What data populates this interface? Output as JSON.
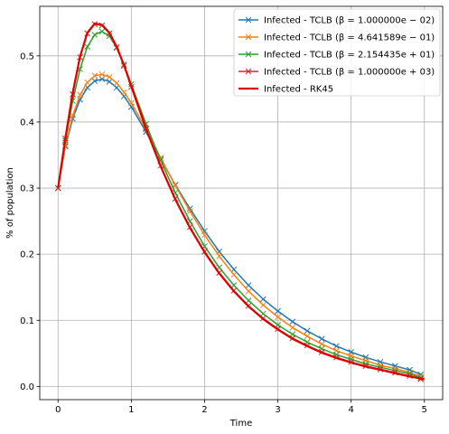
{
  "chart_data": {
    "type": "line",
    "xlabel": "Time",
    "ylabel": "% of population",
    "xlim": [
      -0.25,
      5.25
    ],
    "ylim": [
      -0.02,
      0.575
    ],
    "grid": true,
    "legend_position": "top-right",
    "x_ticks": [
      0,
      1,
      2,
      3,
      4,
      5
    ],
    "x_tick_labels": [
      "0",
      "1",
      "2",
      "3",
      "4",
      "5"
    ],
    "y_ticks": [
      0.0,
      0.1,
      0.2,
      0.3,
      0.4,
      0.5
    ],
    "y_tick_labels": [
      "0.0",
      "0.1",
      "0.2",
      "0.3",
      "0.4",
      "0.5"
    ],
    "series": [
      {
        "name": "Infected - TCLB  (β = 1.000000e − 02)",
        "color": "#1f77b4",
        "marker": "x",
        "x": [
          0.0,
          0.1,
          0.2,
          0.3,
          0.4,
          0.5,
          0.6,
          0.7,
          0.8,
          0.9,
          1.0,
          1.2,
          1.4,
          1.6,
          1.8,
          2.0,
          2.2,
          2.4,
          2.6,
          2.8,
          3.0,
          3.2,
          3.4,
          3.6,
          3.8,
          4.0,
          4.2,
          4.4,
          4.6,
          4.8,
          4.95
        ],
        "values": [
          0.3,
          0.363,
          0.405,
          0.434,
          0.452,
          0.462,
          0.465,
          0.461,
          0.452,
          0.439,
          0.423,
          0.385,
          0.344,
          0.305,
          0.269,
          0.235,
          0.204,
          0.177,
          0.153,
          0.132,
          0.114,
          0.098,
          0.084,
          0.072,
          0.061,
          0.052,
          0.044,
          0.037,
          0.031,
          0.025,
          0.018
        ]
      },
      {
        "name": "Infected - TCLB  (β = 4.641589e − 01)",
        "color": "#ff7f0e",
        "marker": "x",
        "x": [
          0.0,
          0.1,
          0.2,
          0.3,
          0.4,
          0.5,
          0.6,
          0.7,
          0.8,
          0.9,
          1.0,
          1.2,
          1.4,
          1.6,
          1.8,
          2.0,
          2.2,
          2.4,
          2.6,
          2.8,
          3.0,
          3.2,
          3.4,
          3.6,
          3.8,
          4.0,
          4.2,
          4.4,
          4.6,
          4.8,
          4.95
        ],
        "values": [
          0.3,
          0.365,
          0.41,
          0.441,
          0.46,
          0.47,
          0.472,
          0.468,
          0.459,
          0.445,
          0.429,
          0.389,
          0.346,
          0.304,
          0.265,
          0.229,
          0.197,
          0.169,
          0.144,
          0.123,
          0.105,
          0.089,
          0.076,
          0.064,
          0.054,
          0.046,
          0.039,
          0.032,
          0.027,
          0.021,
          0.015
        ]
      },
      {
        "name": "Infected - TCLB  (β = 2.154435e + 01)",
        "color": "#2ca02c",
        "marker": "x",
        "x": [
          0.0,
          0.1,
          0.2,
          0.3,
          0.4,
          0.5,
          0.6,
          0.7,
          0.8,
          0.9,
          1.0,
          1.2,
          1.4,
          1.6,
          1.8,
          2.0,
          2.2,
          2.4,
          2.6,
          2.8,
          3.0,
          3.2,
          3.4,
          3.6,
          3.8,
          4.0,
          4.2,
          4.4,
          4.6,
          4.8,
          4.95
        ],
        "values": [
          0.3,
          0.372,
          0.432,
          0.48,
          0.514,
          0.532,
          0.537,
          0.53,
          0.512,
          0.487,
          0.457,
          0.397,
          0.342,
          0.293,
          0.25,
          0.212,
          0.18,
          0.153,
          0.13,
          0.11,
          0.093,
          0.079,
          0.067,
          0.057,
          0.048,
          0.041,
          0.034,
          0.029,
          0.024,
          0.019,
          0.013
        ]
      },
      {
        "name": "Infected - TCLB  (β = 1.000000e + 03)",
        "color": "#d62728",
        "marker": "x",
        "x": [
          0.0,
          0.1,
          0.2,
          0.3,
          0.4,
          0.5,
          0.6,
          0.7,
          0.8,
          0.9,
          1.0,
          1.2,
          1.4,
          1.6,
          1.8,
          2.0,
          2.2,
          2.4,
          2.6,
          2.8,
          3.0,
          3.2,
          3.4,
          3.6,
          3.8,
          4.0,
          4.2,
          4.4,
          4.6,
          4.8,
          4.95
        ],
        "values": [
          0.3,
          0.375,
          0.442,
          0.498,
          0.534,
          0.548,
          0.546,
          0.534,
          0.513,
          0.485,
          0.453,
          0.39,
          0.334,
          0.284,
          0.241,
          0.204,
          0.172,
          0.145,
          0.122,
          0.103,
          0.087,
          0.073,
          0.062,
          0.052,
          0.044,
          0.037,
          0.031,
          0.026,
          0.021,
          0.016,
          0.011
        ]
      },
      {
        "name": "Infected - RK45",
        "color": "#e00000",
        "marker": "none",
        "x": [
          0.0,
          0.1,
          0.2,
          0.3,
          0.4,
          0.5,
          0.6,
          0.7,
          0.8,
          0.9,
          1.0,
          1.2,
          1.4,
          1.6,
          1.8,
          2.0,
          2.2,
          2.4,
          2.6,
          2.8,
          3.0,
          3.2,
          3.4,
          3.6,
          3.8,
          4.0,
          4.2,
          4.4,
          4.6,
          4.8,
          5.0
        ],
        "values": [
          0.3,
          0.376,
          0.444,
          0.499,
          0.535,
          0.549,
          0.547,
          0.535,
          0.514,
          0.486,
          0.454,
          0.39,
          0.333,
          0.283,
          0.24,
          0.203,
          0.171,
          0.144,
          0.121,
          0.102,
          0.086,
          0.072,
          0.061,
          0.051,
          0.043,
          0.036,
          0.03,
          0.025,
          0.02,
          0.015,
          0.011
        ]
      }
    ]
  }
}
